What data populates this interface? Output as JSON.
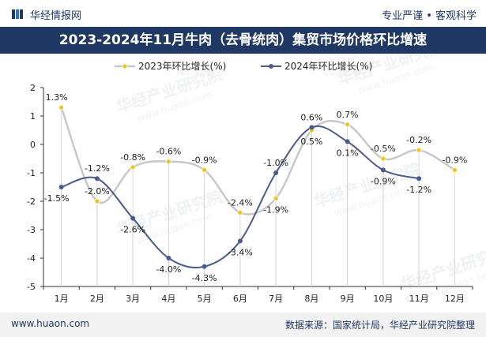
{
  "header": {
    "brand": "华经情报网",
    "slogan": "专业严谨 • 客观科学"
  },
  "footer": {
    "site": "www.huaon.com",
    "source": "数据来源：国家统计局，华经产业研究院整理"
  },
  "watermark": "华经产业研究院",
  "watermark_url": "www.huaon.com",
  "colors": {
    "title_bg": "#1f3864",
    "series_2023": "#c8c8c8",
    "series_2023_marker": "#f0c419",
    "series_2024": "#4a5b8c"
  },
  "chart_data": {
    "type": "line",
    "title": "2023-2024年11月牛肉（去骨统肉）集贸市场价格环比增速",
    "categories": [
      "1月",
      "2月",
      "3月",
      "4月",
      "5月",
      "6月",
      "7月",
      "8月",
      "9月",
      "10月",
      "11月",
      "12月"
    ],
    "ylim": [
      -5,
      2
    ],
    "yticks": [
      2,
      1,
      0,
      -1,
      -2,
      -3,
      -4,
      -5
    ],
    "legend_position": "top-center",
    "grid": false,
    "series": [
      {
        "name": "2023年环比增长(%)",
        "values": [
          1.3,
          -2.0,
          -0.8,
          -0.6,
          -0.9,
          -2.4,
          -1.9,
          0.5,
          0.7,
          -0.5,
          -0.2,
          -0.9
        ],
        "labels": [
          "1.3%",
          "-2.0%",
          "-0.8%",
          "-0.6%",
          "-0.9%",
          "-2.4%",
          "-1.9%",
          "0.5%",
          "0.7%",
          "-0.5%",
          "-0.2%",
          "-0.9%"
        ]
      },
      {
        "name": "2024年环比增长(%)",
        "values": [
          -1.5,
          -1.2,
          -2.6,
          -4.0,
          -4.3,
          -3.4,
          -1.0,
          0.6,
          0.1,
          -0.9,
          -1.2,
          null
        ],
        "labels": [
          "-1.5%",
          "-1.2%",
          "-2.6%",
          "-4.0%",
          "-4.3%",
          "-3.4%",
          "-1.0%",
          "0.6%",
          "0.1%",
          "-0.9%",
          "-1.2%",
          null
        ]
      }
    ]
  }
}
